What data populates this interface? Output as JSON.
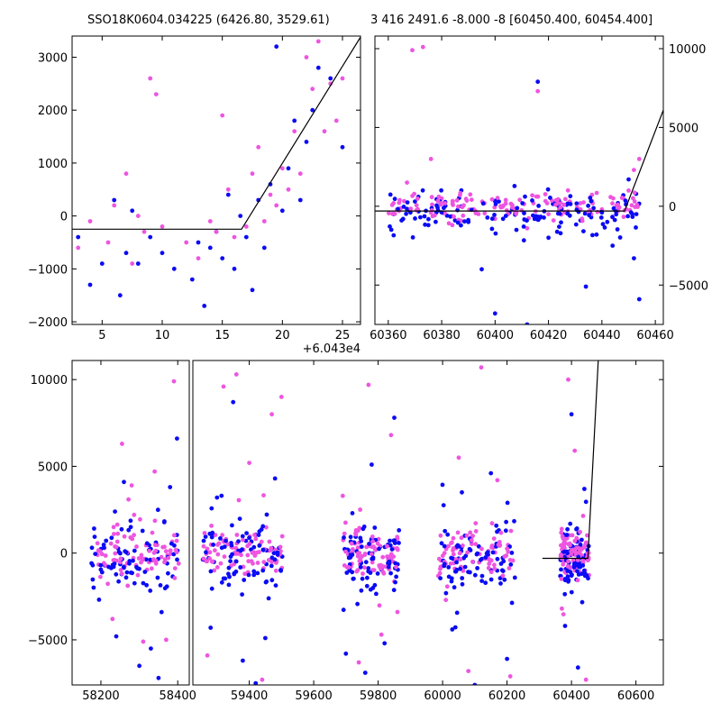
{
  "titles": {
    "left": "SSO18K0604.034225 (6426.80, 3529.61)",
    "right": "3 416 2491.6 -8.000 -8 [60450.400, 60454.400]"
  },
  "colors": {
    "series_a": "#0b0bf5",
    "series_b": "#ee55e0",
    "model": "#000000"
  },
  "chart_data": [
    {
      "type": "scatter",
      "panel": "top-left",
      "x_offset_label": "+6.043e4",
      "xlim": [
        2.5,
        26.5
      ],
      "ylim": [
        -2050,
        3400
      ],
      "xticks": [
        5,
        10,
        15,
        20,
        25
      ],
      "yticks": [
        -2000,
        -1000,
        0,
        1000,
        2000,
        3000
      ],
      "model_line": {
        "x": [
          2.5,
          16.6,
          26.5
        ],
        "y": [
          -250,
          -250,
          3380
        ]
      },
      "series": [
        {
          "color": "#0b0bf5",
          "x": [
            3,
            4,
            5,
            6,
            6.5,
            7,
            7.5,
            8,
            9,
            10,
            11,
            12.5,
            13,
            13.5,
            14,
            14.5,
            15,
            15.5,
            16,
            16.5,
            17,
            17.5,
            18,
            18.5,
            19,
            19.5,
            20,
            20.5,
            21,
            21.5,
            22,
            22.5,
            23,
            24,
            25
          ],
          "y": [
            -400,
            -1300,
            -900,
            300,
            -1500,
            -700,
            100,
            -900,
            -400,
            -700,
            -1000,
            -1200,
            -500,
            -1700,
            -600,
            -300,
            -800,
            400,
            -1000,
            0,
            -400,
            -1400,
            300,
            -600,
            600,
            3200,
            100,
            900,
            1800,
            300,
            1400,
            2000,
            2800,
            2600,
            1300
          ]
        },
        {
          "color": "#ee55e0",
          "x": [
            3,
            4,
            5.5,
            6,
            7,
            7.5,
            8,
            8.5,
            9,
            9.5,
            10,
            12,
            13,
            14,
            14.5,
            15,
            15.5,
            16,
            17,
            17.5,
            18,
            18.5,
            19,
            19.5,
            20,
            20.5,
            21,
            21.5,
            22,
            22.5,
            23,
            23.5,
            24,
            24.5,
            25
          ],
          "y": [
            -600,
            -100,
            -500,
            200,
            800,
            -900,
            0,
            -300,
            2600,
            2300,
            -200,
            -500,
            -800,
            -100,
            -300,
            1900,
            500,
            -400,
            -200,
            800,
            1300,
            -100,
            400,
            200,
            900,
            500,
            1600,
            800,
            3000,
            2400,
            3300,
            1600,
            2500,
            1800,
            2600
          ]
        }
      ]
    },
    {
      "type": "scatter",
      "panel": "top-right",
      "xlim": [
        60355,
        60463
      ],
      "ylim": [
        -7500,
        10800
      ],
      "xticks": [
        60360,
        60380,
        60400,
        60420,
        60440,
        60460
      ],
      "yticks": [
        -5000,
        0,
        5000,
        10000
      ],
      "model_line": {
        "x": [
          60355,
          60448.5,
          60463
        ],
        "y": [
          -300,
          -300,
          6100
        ]
      },
      "series": [
        {
          "color": "#0b0bf5",
          "x": [
            60362,
            60365,
            60368,
            60370,
            60372,
            60375,
            60378,
            60382,
            60385,
            60390,
            60395,
            60400,
            60403,
            60408,
            60412,
            60416,
            60420,
            60424,
            60428,
            60432,
            60434,
            60436,
            60438,
            60440,
            60442,
            60444,
            60446,
            60448,
            60450,
            60452,
            60454
          ],
          "y": [
            -500,
            -900,
            -300,
            300,
            -700,
            -1200,
            -400,
            -600,
            -900,
            -1000,
            -4000,
            -6800,
            -800,
            -1500,
            -7500,
            7900,
            -2000,
            -1300,
            -600,
            -900,
            -5100,
            -700,
            -1800,
            -400,
            -1000,
            -2500,
            200,
            700,
            1700,
            -3300,
            -5900
          ]
        },
        {
          "color": "#ee55e0",
          "x": [
            60362,
            60364,
            60367,
            60369,
            60371,
            60373,
            60376,
            60380,
            60384,
            60388,
            60392,
            60396,
            60400,
            60404,
            60408,
            60412,
            60416,
            60420,
            60424,
            60428,
            60432,
            60436,
            60440,
            60444,
            60446,
            60448,
            60450,
            60452,
            60454
          ],
          "y": [
            200,
            -300,
            1500,
            9900,
            -200,
            10100,
            3000,
            500,
            -1200,
            -600,
            -200,
            200,
            -800,
            400,
            -400,
            -1400,
            7300,
            -500,
            -200,
            300,
            -200,
            -500,
            -200,
            -700,
            100,
            500,
            1000,
            2300,
            3000
          ]
        }
      ]
    },
    {
      "type": "scatter",
      "panel": "bottom",
      "xlim": [
        58125,
        60685
      ],
      "ylim": [
        -7600,
        11100
      ],
      "xticks": [
        58200,
        58400,
        59400,
        59600,
        59800,
        60000,
        60200,
        60400,
        60600
      ],
      "yticks": [
        -5000,
        0,
        5000,
        10000
      ],
      "model_line": {
        "x": [
          60310,
          60451,
          60483
        ],
        "y": [
          -300,
          -300,
          11100
        ]
      },
      "groups": [
        {
          "x": [
            58175,
            58405
          ]
        },
        {
          "x": [
            59255,
            59505
          ]
        },
        {
          "x": [
            59685,
            59865
          ]
        },
        {
          "x": [
            59985,
            60225
          ]
        },
        {
          "x": [
            60365,
            60455
          ]
        }
      ],
      "outliers": [
        {
          "color": "#0b0bf5",
          "x": [
            58240,
            58260,
            58300,
            58330,
            58350,
            58380,
            58398,
            59280,
            59300,
            59350,
            59380,
            59420,
            59450,
            59480,
            59700,
            59720,
            59760,
            59780,
            59820,
            59850,
            60030,
            60060,
            60100,
            60150,
            60200,
            60380,
            60400,
            60420,
            60440
          ],
          "y": [
            -4800,
            4100,
            -6500,
            -5500,
            -7200,
            3800,
            6600,
            -4300,
            3200,
            8700,
            -6200,
            -7500,
            -4900,
            4300,
            -5800,
            2300,
            -6900,
            5100,
            -5200,
            7800,
            -4400,
            3500,
            -7600,
            4600,
            -6100,
            -4200,
            8000,
            -6600,
            3700
          ]
        },
        {
          "color": "#ee55e0",
          "x": [
            58230,
            58255,
            58280,
            58310,
            58340,
            58370,
            58390,
            59270,
            59320,
            59360,
            59400,
            59440,
            59470,
            59500,
            59690,
            59740,
            59770,
            59810,
            59840,
            59860,
            60010,
            60050,
            60080,
            60120,
            60170,
            60210,
            60370,
            60390,
            60410,
            60445
          ],
          "y": [
            -3800,
            6300,
            3900,
            -5100,
            4700,
            -5000,
            9900,
            -5900,
            9600,
            10300,
            5200,
            -7300,
            8000,
            9000,
            3300,
            -6300,
            9700,
            -4700,
            6800,
            -3400,
            -2700,
            5500,
            -6800,
            10700,
            4200,
            -7100,
            -3200,
            10000,
            5900,
            -7300
          ]
        }
      ]
    }
  ]
}
